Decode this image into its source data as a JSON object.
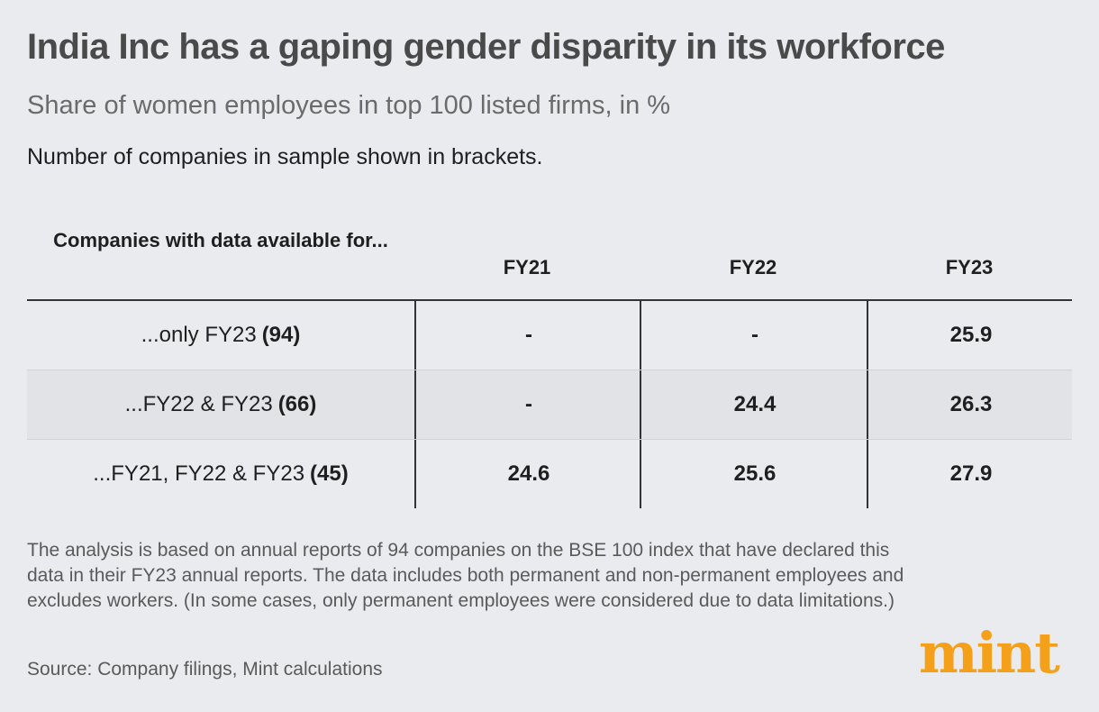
{
  "title": "India Inc has a gaping gender disparity in its workforce",
  "subtitle": "Share of women employees in top 100 listed firms, in %",
  "note": "Number of companies in sample shown in brackets.",
  "chart_data": {
    "type": "table",
    "title": "India Inc has a gaping gender disparity in its workforce",
    "columns": [
      "Companies with data available for...",
      "FY21",
      "FY22",
      "FY23"
    ],
    "rows": [
      {
        "label": "...only FY23",
        "count": "(94)",
        "values": [
          "-",
          "-",
          "25.9"
        ]
      },
      {
        "label": "...FY22 & FY23",
        "count": "(66)",
        "values": [
          "-",
          "24.4",
          "26.3"
        ]
      },
      {
        "label": "...FY21, FY22 & FY23",
        "count": "(45)",
        "values": [
          "24.6",
          "25.6",
          "27.9"
        ]
      }
    ]
  },
  "footnote": "The analysis is based on annual reports of 94 companies on the BSE 100 index that have declared this data in their FY23 annual reports. The data includes both permanent and non-permanent employees and excludes workers. (In some cases, only permanent employees were considered due to data limitations.)",
  "source": "Source: Company filings, Mint calculations",
  "logo": "mint",
  "colors": {
    "background": "#e9ebee",
    "logo": "#f5a01a",
    "title": "#4a4a4a"
  }
}
